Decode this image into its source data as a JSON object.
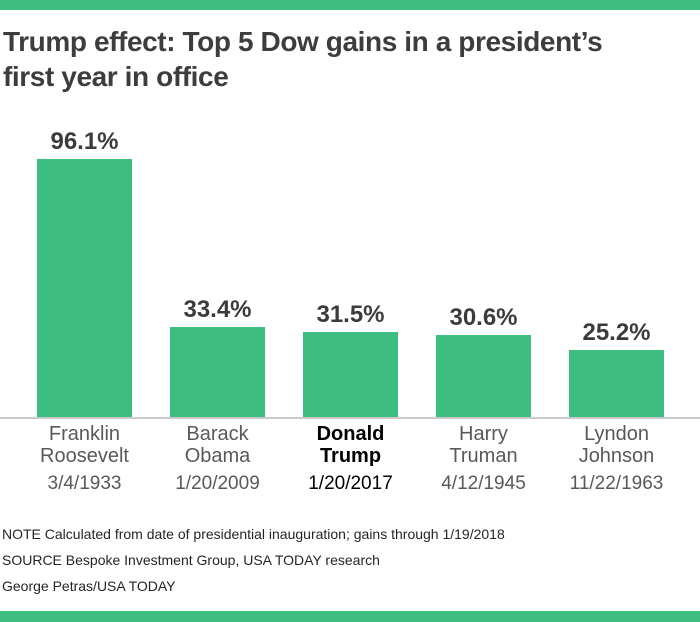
{
  "page": {
    "accent_green": "#3ebd81",
    "label_gray": "#58595b",
    "text_dark": "#3d3d3f"
  },
  "header": {
    "title_line1": "Trump effect: Top 5 Dow gains in a president’s",
    "title_line2": "first year in office"
  },
  "chart_data": {
    "type": "bar",
    "title": "Trump effect: Top 5 Dow gains in a president’s first year in office",
    "categories": [
      "Franklin Roosevelt",
      "Barack Obama",
      "Donald Trump",
      "Harry Truman",
      "Lyndon Johnson"
    ],
    "category_lines": [
      [
        "Franklin",
        "Roosevelt"
      ],
      [
        "Barack",
        "Obama"
      ],
      [
        "Donald",
        "Trump"
      ],
      [
        "Harry",
        "Truman"
      ],
      [
        "Lyndon",
        "Johnson"
      ]
    ],
    "dates": [
      "3/4/1933",
      "1/20/2009",
      "1/20/2017",
      "4/12/1945",
      "11/22/1963"
    ],
    "values": [
      96.1,
      33.4,
      31.5,
      30.6,
      25.2
    ],
    "value_labels": [
      "96.1%",
      "33.4%",
      "31.5%",
      "30.6%",
      "25.2%"
    ],
    "unit": "%",
    "bar_color": "#3ebd81",
    "highlighted_category": "Donald Trump",
    "highlight_index": 2,
    "ylim": [
      0,
      100
    ],
    "grid": false,
    "legend": false
  },
  "footer": {
    "note": "NOTE Calculated from date of presidential inauguration; gains through 1/19/2018",
    "source": "SOURCE Bespoke Investment Group, USA TODAY research",
    "credit": "George Petras/USA TODAY"
  }
}
